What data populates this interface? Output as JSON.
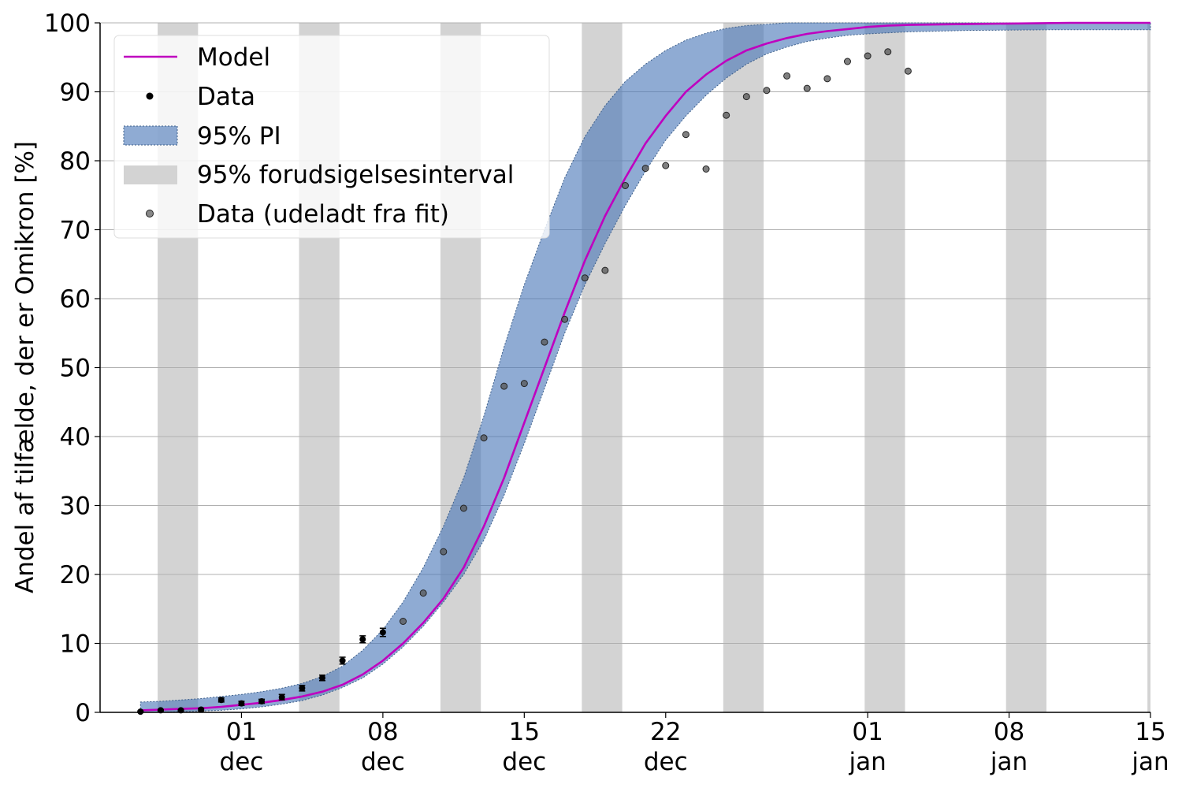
{
  "chart_data": {
    "type": "line",
    "title": "",
    "xlabel": "",
    "ylabel": "Andel af tilfælde, der er Omikron [%]",
    "ylim": [
      0,
      100
    ],
    "xlim": [
      "2021-11-24",
      "2022-01-15"
    ],
    "yticks": [
      0,
      10,
      20,
      30,
      40,
      50,
      60,
      70,
      80,
      90,
      100
    ],
    "xticks": [
      {
        "date": "2021-12-01",
        "line1": "01",
        "line2": "dec"
      },
      {
        "date": "2021-12-08",
        "line1": "08",
        "line2": "dec"
      },
      {
        "date": "2021-12-15",
        "line1": "15",
        "line2": "dec"
      },
      {
        "date": "2021-12-22",
        "line1": "22",
        "line2": "dec"
      },
      {
        "date": "2022-01-01",
        "line1": "01",
        "line2": "jan"
      },
      {
        "date": "2022-01-08",
        "line1": "08",
        "line2": "jan"
      },
      {
        "date": "2022-01-15",
        "line1": "15",
        "line2": "jan"
      }
    ],
    "grid": "horizontal",
    "legend_position": "top-left",
    "weekend_shading": [
      [
        "2021-11-27",
        "2021-11-29"
      ],
      [
        "2021-12-04",
        "2021-12-06"
      ],
      [
        "2021-12-11",
        "2021-12-13"
      ],
      [
        "2021-12-18",
        "2021-12-20"
      ],
      [
        "2021-12-25",
        "2021-12-27"
      ],
      [
        "2022-01-01",
        "2022-01-03"
      ],
      [
        "2022-01-08",
        "2022-01-10"
      ],
      [
        "2022-01-15",
        "2022-01-16"
      ]
    ],
    "series": [
      {
        "name": "Model",
        "kind": "line",
        "color": "#bf00bf",
        "points": [
          [
            "2021-11-26",
            0.3
          ],
          [
            "2021-11-27",
            0.4
          ],
          [
            "2021-11-28",
            0.5
          ],
          [
            "2021-11-29",
            0.6
          ],
          [
            "2021-11-30",
            0.8
          ],
          [
            "2021-12-01",
            1.1
          ],
          [
            "2021-12-02",
            1.4
          ],
          [
            "2021-12-03",
            1.8
          ],
          [
            "2021-12-04",
            2.3
          ],
          [
            "2021-12-05",
            3.0
          ],
          [
            "2021-12-06",
            4.0
          ],
          [
            "2021-12-07",
            5.5
          ],
          [
            "2021-12-08",
            7.5
          ],
          [
            "2021-12-09",
            10.0
          ],
          [
            "2021-12-10",
            13.0
          ],
          [
            "2021-12-11",
            16.5
          ],
          [
            "2021-12-12",
            21.0
          ],
          [
            "2021-12-13",
            27.0
          ],
          [
            "2021-12-14",
            34.0
          ],
          [
            "2021-12-15",
            42.0
          ],
          [
            "2021-12-16",
            50.0
          ],
          [
            "2021-12-17",
            58.0
          ],
          [
            "2021-12-18",
            65.5
          ],
          [
            "2021-12-19",
            72.0
          ],
          [
            "2021-12-20",
            77.5
          ],
          [
            "2021-12-21",
            82.5
          ],
          [
            "2021-12-22",
            86.5
          ],
          [
            "2021-12-23",
            90.0
          ],
          [
            "2021-12-24",
            92.5
          ],
          [
            "2021-12-25",
            94.5
          ],
          [
            "2021-12-26",
            96.0
          ],
          [
            "2021-12-27",
            97.0
          ],
          [
            "2021-12-28",
            97.8
          ],
          [
            "2021-12-29",
            98.4
          ],
          [
            "2021-12-30",
            98.8
          ],
          [
            "2021-12-31",
            99.1
          ],
          [
            "2022-01-01",
            99.4
          ],
          [
            "2022-01-02",
            99.6
          ],
          [
            "2022-01-03",
            99.7
          ],
          [
            "2022-01-05",
            99.8
          ],
          [
            "2022-01-08",
            99.9
          ],
          [
            "2022-01-11",
            100.0
          ],
          [
            "2022-01-15",
            100.0
          ]
        ]
      },
      {
        "name": "Data",
        "kind": "scatter",
        "color": "#000000",
        "points": [
          [
            "2021-11-26",
            0.1,
            0.1
          ],
          [
            "2021-11-27",
            0.3,
            0.1
          ],
          [
            "2021-11-28",
            0.3,
            0.1
          ],
          [
            "2021-11-29",
            0.4,
            0.2
          ],
          [
            "2021-11-30",
            1.8,
            0.3
          ],
          [
            "2021-12-01",
            1.3,
            0.3
          ],
          [
            "2021-12-02",
            1.6,
            0.3
          ],
          [
            "2021-12-03",
            2.2,
            0.4
          ],
          [
            "2021-12-04",
            3.5,
            0.4
          ],
          [
            "2021-12-05",
            5.0,
            0.4
          ],
          [
            "2021-12-06",
            7.5,
            0.5
          ],
          [
            "2021-12-07",
            10.6,
            0.5
          ],
          [
            "2021-12-08",
            11.6,
            0.6
          ]
        ]
      },
      {
        "name": "95% PI",
        "kind": "band",
        "color": "#4a78b8",
        "points": [
          [
            "2021-11-26",
            0.0,
            1.5
          ],
          [
            "2021-11-27",
            0.0,
            1.6
          ],
          [
            "2021-11-28",
            0.1,
            1.8
          ],
          [
            "2021-11-29",
            0.2,
            2.0
          ],
          [
            "2021-11-30",
            0.3,
            2.3
          ],
          [
            "2021-12-01",
            0.5,
            2.6
          ],
          [
            "2021-12-02",
            0.8,
            3.0
          ],
          [
            "2021-12-03",
            1.2,
            3.5
          ],
          [
            "2021-12-04",
            1.7,
            4.2
          ],
          [
            "2021-12-05",
            2.5,
            5.2
          ],
          [
            "2021-12-06",
            3.6,
            6.7
          ],
          [
            "2021-12-07",
            5.0,
            9.0
          ],
          [
            "2021-12-08",
            7.0,
            12.0
          ],
          [
            "2021-12-09",
            9.5,
            16.0
          ],
          [
            "2021-12-10",
            12.5,
            21.0
          ],
          [
            "2021-12-11",
            16.0,
            27.0
          ],
          [
            "2021-12-12",
            20.0,
            34.0
          ],
          [
            "2021-12-13",
            25.0,
            43.0
          ],
          [
            "2021-12-14",
            31.5,
            53.0
          ],
          [
            "2021-12-15",
            39.0,
            62.0
          ],
          [
            "2021-12-16",
            47.0,
            70.0
          ],
          [
            "2021-12-17",
            55.0,
            77.5
          ],
          [
            "2021-12-18",
            62.0,
            83.5
          ],
          [
            "2021-12-19",
            68.0,
            88.0
          ],
          [
            "2021-12-20",
            73.5,
            91.5
          ],
          [
            "2021-12-21",
            78.5,
            94.0
          ],
          [
            "2021-12-22",
            83.0,
            96.0
          ],
          [
            "2021-12-23",
            86.5,
            97.5
          ],
          [
            "2021-12-24",
            89.5,
            98.5
          ],
          [
            "2021-12-25",
            92.0,
            99.2
          ],
          [
            "2021-12-26",
            94.0,
            99.6
          ],
          [
            "2021-12-27",
            95.5,
            99.8
          ],
          [
            "2021-12-28",
            96.5,
            100.0
          ],
          [
            "2021-12-29",
            97.3,
            100.0
          ],
          [
            "2021-12-30",
            97.8,
            100.0
          ],
          [
            "2021-12-31",
            98.2,
            100.0
          ],
          [
            "2022-01-01",
            98.4,
            100.0
          ],
          [
            "2022-01-03",
            98.7,
            100.0
          ],
          [
            "2022-01-06",
            98.9,
            100.0
          ],
          [
            "2022-01-10",
            99.0,
            100.0
          ],
          [
            "2022-01-15",
            99.0,
            100.0
          ]
        ]
      },
      {
        "name": "95% forudsigelsesinterval",
        "kind": "legend-only",
        "color": "#d3d3d3"
      },
      {
        "name": "Data (udeladt fra fit)",
        "kind": "scatter",
        "color": "#555555",
        "points": [
          [
            "2021-12-09",
            13.2
          ],
          [
            "2021-12-10",
            17.3
          ],
          [
            "2021-12-11",
            23.3
          ],
          [
            "2021-12-12",
            29.6
          ],
          [
            "2021-12-13",
            39.8
          ],
          [
            "2021-12-14",
            47.3
          ],
          [
            "2021-12-15",
            47.7
          ],
          [
            "2021-12-16",
            53.7
          ],
          [
            "2021-12-17",
            57.0
          ],
          [
            "2021-12-18",
            63.0
          ],
          [
            "2021-12-19",
            64.1
          ],
          [
            "2021-12-20",
            76.4
          ],
          [
            "2021-12-21",
            78.9
          ],
          [
            "2021-12-22",
            79.3
          ],
          [
            "2021-12-23",
            83.8
          ],
          [
            "2021-12-24",
            78.8
          ],
          [
            "2021-12-25",
            86.6
          ],
          [
            "2021-12-26",
            89.3
          ],
          [
            "2021-12-27",
            90.2
          ],
          [
            "2021-12-28",
            92.3
          ],
          [
            "2021-12-29",
            90.5
          ],
          [
            "2021-12-30",
            91.9
          ],
          [
            "2021-12-31",
            94.4
          ],
          [
            "2022-01-01",
            95.2
          ],
          [
            "2022-01-02",
            95.8
          ],
          [
            "2022-01-03",
            93.0
          ]
        ]
      }
    ]
  }
}
